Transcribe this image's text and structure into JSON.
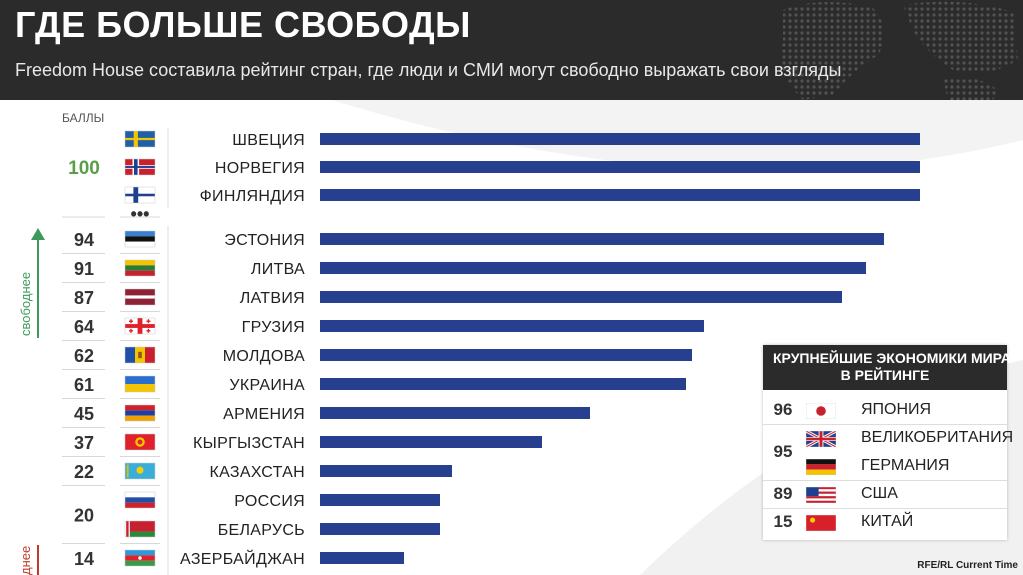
{
  "header": {
    "title": "ГДЕ БОЛЬШЕ СВОБОДЫ",
    "subtitle": "Freedom House составила рейтинг стран, где люди и СМИ могут свободно выражать свои взгляды"
  },
  "colors": {
    "bar": "#26408f",
    "header_bg": "#2b2b2b",
    "score_top": "#5a9e4a",
    "arrow_free": "#3e9a5c",
    "marker_less_free": "#c0392b"
  },
  "side_labels": {
    "free": "свободнее",
    "less_free": "днее"
  },
  "chart_data": {
    "type": "bar",
    "orientation": "horizontal",
    "score_header": "БАЛЛЫ",
    "gap_marker": "•••",
    "xlim": [
      0,
      100
    ],
    "rows": [
      {
        "country": "ШВЕЦИЯ",
        "score": 100,
        "flag": "sweden"
      },
      {
        "country": "НОРВЕГИЯ",
        "score": 100,
        "flag": "norway"
      },
      {
        "country": "ФИНЛЯНДИЯ",
        "score": 100,
        "flag": "finland"
      },
      {
        "country": "ЭСТОНИЯ",
        "score": 94,
        "flag": "estonia"
      },
      {
        "country": "ЛИТВА",
        "score": 91,
        "flag": "lithuania"
      },
      {
        "country": "ЛАТВИЯ",
        "score": 87,
        "flag": "latvia"
      },
      {
        "country": "ГРУЗИЯ",
        "score": 64,
        "flag": "georgia"
      },
      {
        "country": "МОЛДОВА",
        "score": 62,
        "flag": "moldova"
      },
      {
        "country": "УКРАИНА",
        "score": 61,
        "flag": "ukraine"
      },
      {
        "country": "АРМЕНИЯ",
        "score": 45,
        "flag": "armenia"
      },
      {
        "country": "КЫРГЫЗСТАН",
        "score": 37,
        "flag": "kyrgyzstan"
      },
      {
        "country": "КАЗАХСТАН",
        "score": 22,
        "flag": "kazakhstan"
      },
      {
        "country": "РОССИЯ",
        "score": 20,
        "flag": "russia"
      },
      {
        "country": "БЕЛАРУСЬ",
        "score": 20,
        "flag": "belarus"
      },
      {
        "country": "АЗЕРБАЙДЖАН",
        "score": 14,
        "flag": "azerbaijan"
      }
    ],
    "score_labels": [
      {
        "text": "100",
        "rows": [
          0,
          1,
          2
        ]
      },
      {
        "text": "94",
        "rows": [
          3
        ]
      },
      {
        "text": "91",
        "rows": [
          4
        ]
      },
      {
        "text": "87",
        "rows": [
          5
        ]
      },
      {
        "text": "64",
        "rows": [
          6
        ]
      },
      {
        "text": "62",
        "rows": [
          7
        ]
      },
      {
        "text": "61",
        "rows": [
          8
        ]
      },
      {
        "text": "45",
        "rows": [
          9
        ]
      },
      {
        "text": "37",
        "rows": [
          10
        ]
      },
      {
        "text": "22",
        "rows": [
          11
        ]
      },
      {
        "text": "20",
        "rows": [
          12,
          13
        ]
      },
      {
        "text": "14",
        "rows": [
          14
        ]
      }
    ]
  },
  "inset": {
    "title_line1": "КРУПНЕЙШИЕ ЭКОНОМИКИ МИРА",
    "title_line2": "В РЕЙТИНГЕ",
    "rows": [
      {
        "country": "ЯПОНИЯ",
        "flag": "japan"
      },
      {
        "country": "ВЕЛИКОБРИТАНИЯ",
        "flag": "uk"
      },
      {
        "country": "ГЕРМАНИЯ",
        "flag": "germany"
      },
      {
        "country": "США",
        "flag": "usa"
      },
      {
        "country": "КИТАЙ",
        "flag": "china"
      }
    ],
    "score_labels": [
      {
        "text": "96",
        "rows": [
          0
        ]
      },
      {
        "text": "95",
        "rows": [
          1,
          2
        ]
      },
      {
        "text": "89",
        "rows": [
          3
        ]
      },
      {
        "text": "15",
        "rows": [
          4
        ]
      }
    ]
  },
  "credit": "RFE/RL Current Time"
}
